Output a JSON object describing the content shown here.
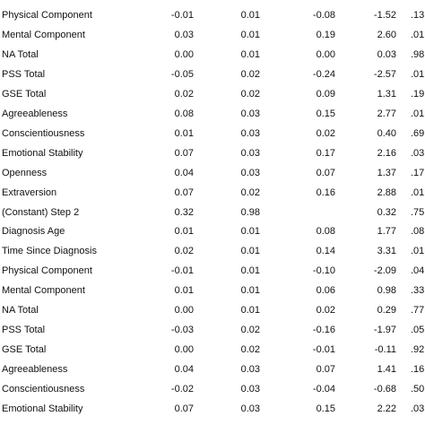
{
  "table": {
    "rows": [
      [
        "Physical Component",
        "-0.01",
        "0.01",
        "-0.08",
        "-1.52",
        ".13"
      ],
      [
        "Mental Component",
        "0.03",
        "0.01",
        "0.19",
        "2.60",
        ".01"
      ],
      [
        "NA Total",
        "0.00",
        "0.01",
        "0.00",
        "0.03",
        ".98"
      ],
      [
        "PSS Total",
        "-0.05",
        "0.02",
        "-0.24",
        "-2.57",
        ".01"
      ],
      [
        "GSE Total",
        "0.02",
        "0.02",
        "0.09",
        "1.31",
        ".19"
      ],
      [
        "Agreeableness",
        "0.08",
        "0.03",
        "0.15",
        "2.77",
        ".01"
      ],
      [
        "Conscientiousness",
        "0.01",
        "0.03",
        "0.02",
        "0.40",
        ".69"
      ],
      [
        "Emotional Stability",
        "0.07",
        "0.03",
        "0.17",
        "2.16",
        ".03"
      ],
      [
        "Openness",
        "0.04",
        "0.03",
        "0.07",
        "1.37",
        ".17"
      ],
      [
        "Extraversion",
        "0.07",
        "0.02",
        "0.16",
        "2.88",
        ".01"
      ],
      [
        "(Constant) Step 2",
        "0.32",
        "0.98",
        null,
        "0.32",
        ".75"
      ],
      [
        "Diagnosis Age",
        "0.01",
        "0.01",
        "0.08",
        "1.77",
        ".08"
      ],
      [
        "Time Since Diagnosis",
        "0.02",
        "0.01",
        "0.14",
        "3.31",
        ".01"
      ],
      [
        "Physical Component",
        "-0.01",
        "0.01",
        "-0.10",
        "-2.09",
        ".04"
      ],
      [
        "Mental Component",
        "0.01",
        "0.01",
        "0.06",
        "0.98",
        ".33"
      ],
      [
        "NA Total",
        "0.00",
        "0.01",
        "0.02",
        "0.29",
        ".77"
      ],
      [
        "PSS Total",
        "-0.03",
        "0.02",
        "-0.16",
        "-1.97",
        ".05"
      ],
      [
        "GSE Total",
        "0.00",
        "0.02",
        "-0.01",
        "-0.11",
        ".92"
      ],
      [
        "Agreeableness",
        "0.04",
        "0.03",
        "0.07",
        "1.41",
        ".16"
      ],
      [
        "Conscientiousness",
        "-0.02",
        "0.03",
        "-0.04",
        "-0.68",
        ".50"
      ],
      [
        "Emotional Stability",
        "0.07",
        "0.03",
        "0.15",
        "2.22",
        ".03"
      ]
    ]
  }
}
